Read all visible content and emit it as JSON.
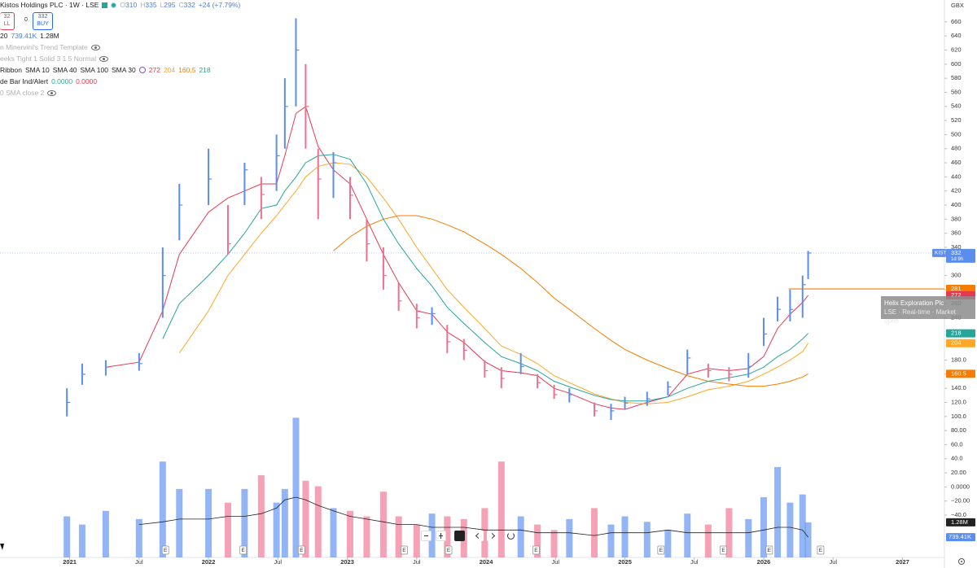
{
  "header": {
    "title": "Kistos Holdings PLC · 1W · LSE",
    "ohlc_labels": [
      "O",
      "H",
      "L",
      "C"
    ],
    "change": "+24 (+7.79%)",
    "sell": {
      "price": "32",
      "label": "LL"
    },
    "spread": "0",
    "buy": {
      "price": "332",
      "label": "BUY"
    },
    "volume_prefix": "20",
    "indicators": [
      "n Minervini's Trend Template",
      "eeks Tight 1 Solid 3 1 5 Normal"
    ],
    "ribbon": "Ribbon",
    "bar_alert": {
      "name": "de Bar Ind/Alert",
      "v1": "0.0000",
      "v2": "0.0000"
    },
    "sma_close": "0 SMA close 2"
  },
  "tooltip": {
    "title": "Helix Exploration Plc",
    "subtitle": "LSE · Real-time · Market open"
  },
  "chart_data": {
    "type": "ohlc",
    "currency": "GBX",
    "symbol_tag": "KIST",
    "countdown": "1d 9h",
    "last_open": 310,
    "x": [
      2020.98,
      2021.09,
      2021.26,
      2021.5,
      2021.67,
      2021.79,
      2022.0,
      2022.14,
      2022.26,
      2022.38,
      2022.49,
      2022.55,
      2022.63,
      2022.7,
      2022.79,
      2022.9,
      2023.02,
      2023.14,
      2023.26,
      2023.37,
      2023.5,
      2023.61,
      2023.72,
      2023.84,
      2023.99,
      2024.11,
      2024.25,
      2024.37,
      2024.49,
      2024.6,
      2024.78,
      2024.9,
      2025.0,
      2025.16,
      2025.31,
      2025.45,
      2025.6,
      2025.75,
      2025.89,
      2026.0,
      2026.1,
      2026.19,
      2026.28,
      2026.32
    ],
    "high": [
      140,
      175,
      180,
      190,
      340,
      430,
      480,
      400,
      460,
      440,
      500,
      580,
      665,
      600,
      480,
      475,
      440,
      380,
      340,
      290,
      260,
      255,
      230,
      210,
      180,
      170,
      190,
      160,
      145,
      140,
      120,
      118,
      128,
      135,
      150,
      195,
      175,
      170,
      190,
      240,
      270,
      280,
      300,
      335
    ],
    "low": [
      100,
      145,
      158,
      165,
      240,
      350,
      400,
      330,
      400,
      380,
      420,
      480,
      540,
      480,
      380,
      410,
      380,
      320,
      280,
      250,
      225,
      230,
      190,
      180,
      155,
      140,
      160,
      140,
      125,
      120,
      100,
      95,
      110,
      115,
      130,
      160,
      155,
      150,
      155,
      200,
      235,
      235,
      240,
      295
    ],
    "close": [
      120,
      160,
      170,
      175,
      300,
      400,
      437,
      345,
      450,
      415,
      470,
      540,
      620,
      540,
      437,
      460,
      414,
      345,
      300,
      264,
      240,
      246,
      206,
      194,
      165,
      154,
      171,
      148,
      131,
      131,
      108,
      108,
      119,
      125,
      142,
      183,
      165,
      160,
      171,
      217,
      252,
      252,
      287,
      332
    ],
    "up_color": "#5b8def",
    "down_color": "#ef6f8f",
    "series": [
      {
        "name": "SMA 10",
        "color": "#e53950",
        "values": [
          null,
          null,
          170,
          177,
          250,
          330,
          390,
          410,
          420,
          430,
          430,
          470,
          530,
          540,
          483,
          450,
          430,
          380,
          330,
          290,
          250,
          245,
          220,
          205,
          178,
          165,
          162,
          158,
          140,
          133,
          118,
          112,
          110,
          120,
          128,
          160,
          168,
          165,
          168,
          185,
          225,
          245,
          262,
          272
        ]
      },
      {
        "name": "SMA 40",
        "color": "#ffa726",
        "values": [
          null,
          null,
          null,
          null,
          null,
          190,
          250,
          300,
          330,
          360,
          385,
          400,
          420,
          440,
          455,
          460,
          458,
          440,
          410,
          380,
          340,
          310,
          280,
          255,
          225,
          200,
          188,
          175,
          158,
          148,
          132,
          125,
          120,
          118,
          120,
          128,
          138,
          143,
          150,
          160,
          170,
          180,
          192,
          204
        ]
      },
      {
        "name": "SMA 100",
        "color": "#f57c00",
        "values": [
          null,
          null,
          null,
          null,
          null,
          null,
          null,
          null,
          null,
          null,
          null,
          null,
          null,
          null,
          null,
          335,
          355,
          370,
          380,
          385,
          385,
          380,
          372,
          362,
          345,
          330,
          310,
          290,
          268,
          252,
          225,
          208,
          195,
          180,
          168,
          158,
          150,
          146,
          143,
          143,
          146,
          150,
          156,
          160.5
        ]
      },
      {
        "name": "SMA 30",
        "color": "#26a69a",
        "values": [
          null,
          null,
          null,
          null,
          210,
          260,
          300,
          330,
          360,
          395,
          400,
          420,
          440,
          460,
          470,
          472,
          465,
          430,
          380,
          345,
          310,
          285,
          255,
          232,
          205,
          185,
          175,
          165,
          150,
          142,
          130,
          124,
          122,
          122,
          128,
          140,
          150,
          155,
          160,
          170,
          185,
          195,
          210,
          218
        ]
      }
    ],
    "level": {
      "value": 281,
      "x_start": 2026.18,
      "color": "#f57c00"
    },
    "volume": {
      "vlim": [
        0,
        5.2
      ],
      "values": [
        1.5,
        1.2,
        1.7,
        1.4,
        3.5,
        2.5,
        2.5,
        2.0,
        2.5,
        3.0,
        2.0,
        2.5,
        5.1,
        2.8,
        2.6,
        1.8,
        1.7,
        1.5,
        2.4,
        1.5,
        1.2,
        1.6,
        1.5,
        1.4,
        1.8,
        3.5,
        1.5,
        1.2,
        1.0,
        1.4,
        1.8,
        1.2,
        1.5,
        1.3,
        1.0,
        1.6,
        1.2,
        1.8,
        1.4,
        2.2,
        3.3,
        2.0,
        2.3,
        1.28
      ],
      "current_label": "1.28M",
      "ma_values": [
        null,
        null,
        null,
        1.2,
        1.3,
        1.4,
        1.4,
        1.5,
        1.5,
        1.6,
        1.8,
        2.1,
        2.2,
        2.1,
        1.9,
        1.7,
        1.5,
        1.4,
        1.3,
        1.2,
        1.2,
        1.1,
        1.1,
        1.1,
        1.0,
        1.0,
        1.0,
        0.9,
        0.9,
        0.9,
        0.8,
        0.9,
        0.9,
        0.9,
        1.0,
        0.9,
        0.9,
        0.9,
        0.9,
        1.0,
        1.1,
        1.1,
        1.0,
        0.73941
      ],
      "ma_label": "739.41K",
      "ma_color": "#222"
    },
    "earnings": {
      "label": "E",
      "x": [
        2021.69,
        2022.25,
        2022.67,
        2023.41,
        2023.73,
        2024.36,
        2025.26,
        2025.71,
        2026.04,
        2026.41
      ]
    },
    "xlim": [
      2020.498,
      2027.302
    ],
    "xticks": [
      2021,
      {
        "value": 2021.5,
        "label": "Jul"
      },
      2022,
      {
        "value": 2022.5,
        "label": "Jul"
      },
      2023,
      {
        "value": 2023.5,
        "label": "Jul"
      },
      2024,
      {
        "value": 2024.5,
        "label": "Jul"
      },
      2025,
      {
        "value": 2025.5,
        "label": "Jul"
      },
      2026,
      {
        "value": 2026.5,
        "label": "Jul"
      },
      2027
    ],
    "ylim": [
      -100,
      691
    ],
    "yticks": [
      660,
      640,
      620,
      600,
      580,
      560,
      540,
      520,
      500,
      480,
      460,
      440,
      420,
      400,
      380,
      360,
      340,
      300,
      280,
      260,
      240,
      {
        "value": 180,
        "label": "180.0"
      },
      {
        "value": 160,
        "label": "160.0"
      },
      {
        "value": 140,
        "label": "140.0"
      },
      {
        "value": 120,
        "label": "120.0"
      },
      {
        "value": 100,
        "label": "100.0"
      },
      {
        "value": 80,
        "label": "80.00"
      },
      {
        "value": 60,
        "label": "60.0"
      },
      {
        "value": 40,
        "label": "40.0"
      },
      {
        "value": 20,
        "label": "20.00"
      },
      {
        "value": 0,
        "label": "0.0000"
      },
      {
        "value": -20,
        "label": "−20.00"
      },
      {
        "value": -40,
        "label": "−40.0"
      }
    ]
  }
}
